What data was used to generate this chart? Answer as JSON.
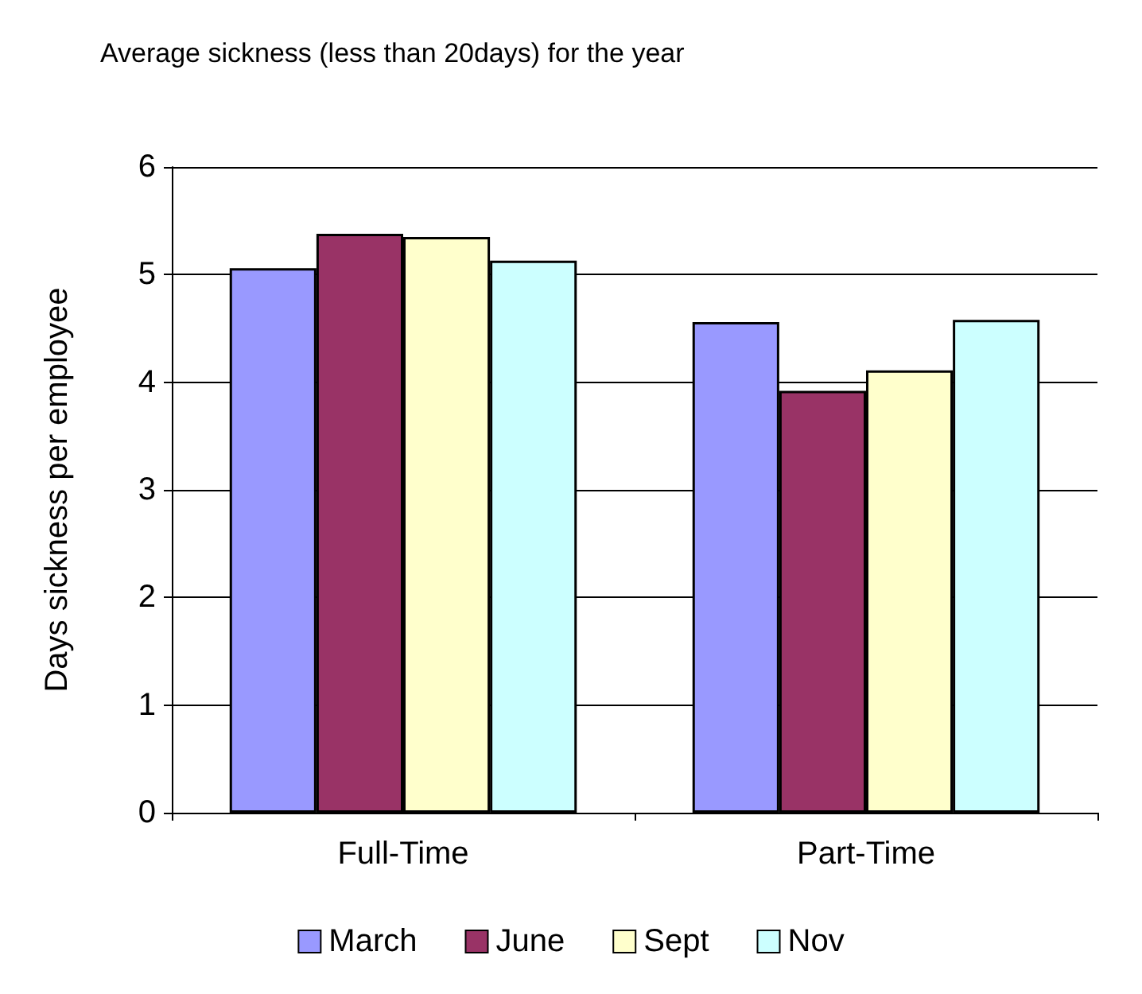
{
  "chart_data": {
    "type": "bar",
    "title": "Average sickness (less than 20days) for the year",
    "ylabel": "Days sickness per employee",
    "categories": [
      "Full-Time",
      "Part-Time"
    ],
    "series": [
      {
        "name": "March",
        "color": "#9999ff",
        "values": [
          5.06,
          4.56
        ]
      },
      {
        "name": "June",
        "color": "#993366",
        "values": [
          5.38,
          3.92
        ]
      },
      {
        "name": "Sept",
        "color": "#ffffcc",
        "values": [
          5.35,
          4.11
        ]
      },
      {
        "name": "Nov",
        "color": "#ccffff",
        "values": [
          5.13,
          4.58
        ]
      }
    ],
    "ylim": [
      0,
      6
    ],
    "yticks": [
      0,
      1,
      2,
      3,
      4,
      5,
      6
    ],
    "grid": "y",
    "legend": "bottom"
  }
}
